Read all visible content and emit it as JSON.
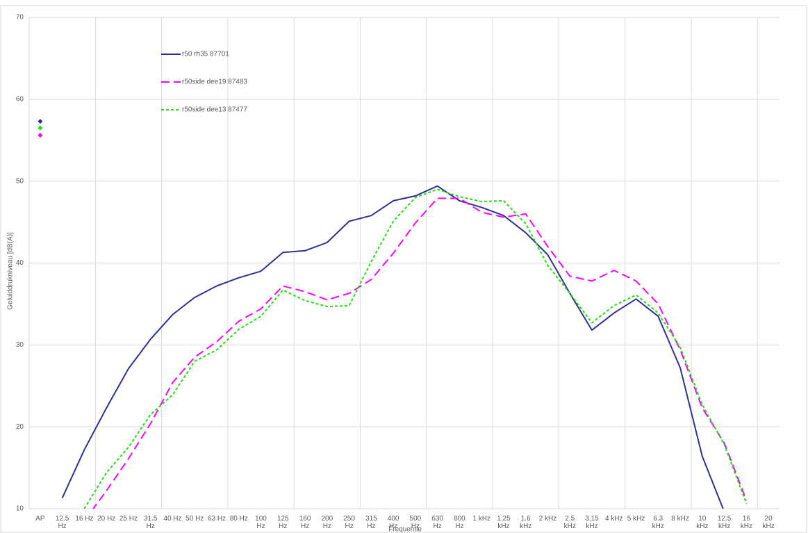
{
  "chart_data": {
    "type": "line",
    "x_label": "Frequentie",
    "y_label": "Geluiddrukniveau [dB(A)]",
    "categories": [
      "AP",
      "12.5 Hz",
      "16 Hz",
      "20 Hz",
      "25 Hz",
      "31.5 Hz",
      "40 Hz",
      "50 Hz",
      "63 Hz",
      "80 Hz",
      "100 Hz",
      "125 Hz",
      "160 Hz",
      "200 Hz",
      "250 Hz",
      "315 Hz",
      "400 Hz",
      "500 Hz",
      "630 Hz",
      "800 Hz",
      "1 kHz",
      "1.25 kHz",
      "1.6 kHz",
      "2 kHz",
      "2.5 kHz",
      "3.15 kHz",
      "4 kHz",
      "5 kHz",
      "6.3 kHz",
      "8 kHz",
      "10 kHz",
      "12.5 kHz",
      "16 kHz",
      "20 kHz"
    ],
    "series": [
      {
        "name": "r50 rh35 87701",
        "color": "#2e3192",
        "dash": "none",
        "values": [
          57.3,
          11.3,
          17.2,
          22.3,
          27.1,
          30.7,
          33.7,
          35.8,
          37.2,
          38.2,
          39.0,
          41.3,
          41.5,
          42.5,
          45.1,
          45.8,
          47.6,
          48.2,
          49.4,
          47.6,
          46.8,
          45.8,
          43.7,
          41.0,
          36.3,
          31.8,
          33.9,
          35.6,
          33.5,
          27.2,
          16.4,
          9.6,
          null,
          null
        ]
      },
      {
        "name": "r50side dee19 87483",
        "color": "#ff00ff",
        "dash": "12,6",
        "values": [
          55.6,
          null,
          8.5,
          12.2,
          16.1,
          20.4,
          25.4,
          28.5,
          30.4,
          32.9,
          34.4,
          37.2,
          36.5,
          35.5,
          36.3,
          38.0,
          41.2,
          44.9,
          47.9,
          47.9,
          46.2,
          45.6,
          46.0,
          42.0,
          38.4,
          37.8,
          39.1,
          37.8,
          35.0,
          29.4,
          22.3,
          18.0,
          11.0,
          null
        ]
      },
      {
        "name": "r50side dee13 87477",
        "color": "#22dd11",
        "dash": "4,3",
        "values": [
          56.5,
          null,
          10.0,
          14.4,
          17.5,
          21.5,
          23.9,
          28.0,
          29.4,
          31.9,
          33.5,
          36.7,
          35.4,
          34.7,
          34.8,
          40.2,
          45.1,
          48.0,
          49.0,
          48.1,
          47.5,
          47.6,
          44.8,
          39.7,
          36.3,
          32.7,
          34.8,
          36.1,
          33.9,
          29.7,
          22.7,
          17.8,
          10.6,
          null
        ]
      }
    ],
    "ylim": [
      10,
      70
    ],
    "yticks": [
      10,
      20,
      30,
      40,
      50,
      60,
      70
    ],
    "grid": true
  }
}
